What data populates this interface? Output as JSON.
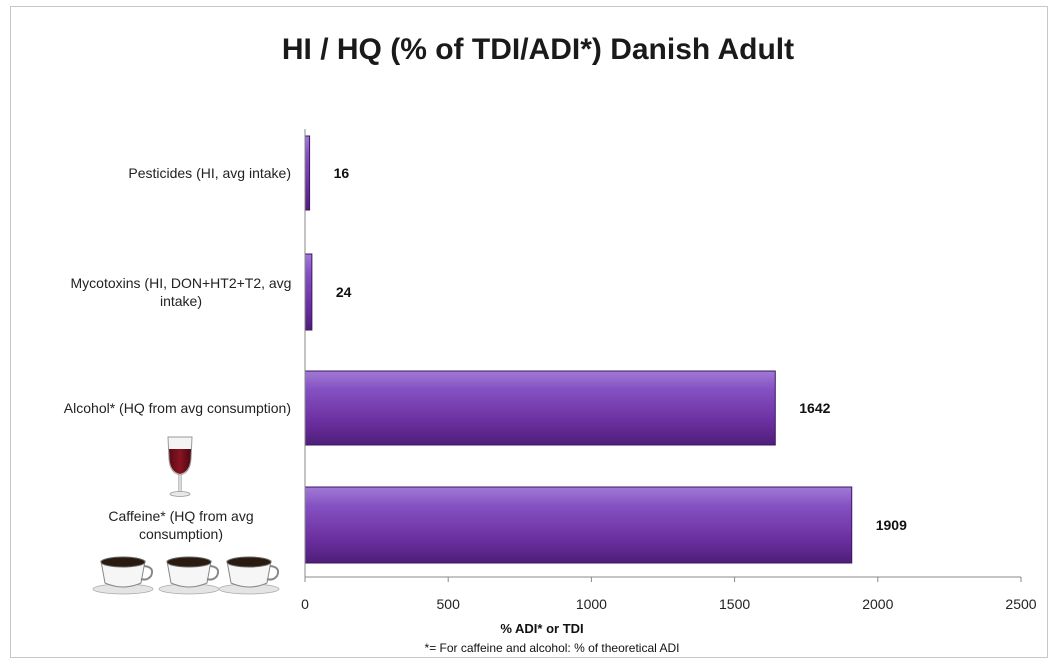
{
  "chart_data": {
    "type": "bar",
    "orientation": "horizontal",
    "title": "HI / HQ (% of TDI/ADI*) Danish Adult",
    "xlabel": "% ADI* or TDI",
    "ylabel": "",
    "footnote": "*= For caffeine and alcohol: % of theoretical ADI",
    "xlim": [
      0,
      2500
    ],
    "xticks": [
      "0",
      "500",
      "1000",
      "1500",
      "2000",
      "2500"
    ],
    "categories": [
      [
        "Pesticides (HI, avg intake)"
      ],
      [
        "Mycotoxins (HI, DON+HT2+T2, avg",
        "intake)"
      ],
      [
        "Alcohol* (HQ from avg consumption)"
      ],
      [
        "Caffeine* (HQ from avg",
        "consumption)"
      ]
    ],
    "values": [
      16,
      24,
      1642,
      1909
    ],
    "data_labels": [
      "16",
      "24",
      "1642",
      "1909"
    ],
    "bar_color": "#7030a0",
    "grid": false,
    "legend": "none"
  },
  "illustrations": {
    "wine_glass": "wine-glass-icon",
    "coffee_cups": "coffee-cup-icon"
  }
}
